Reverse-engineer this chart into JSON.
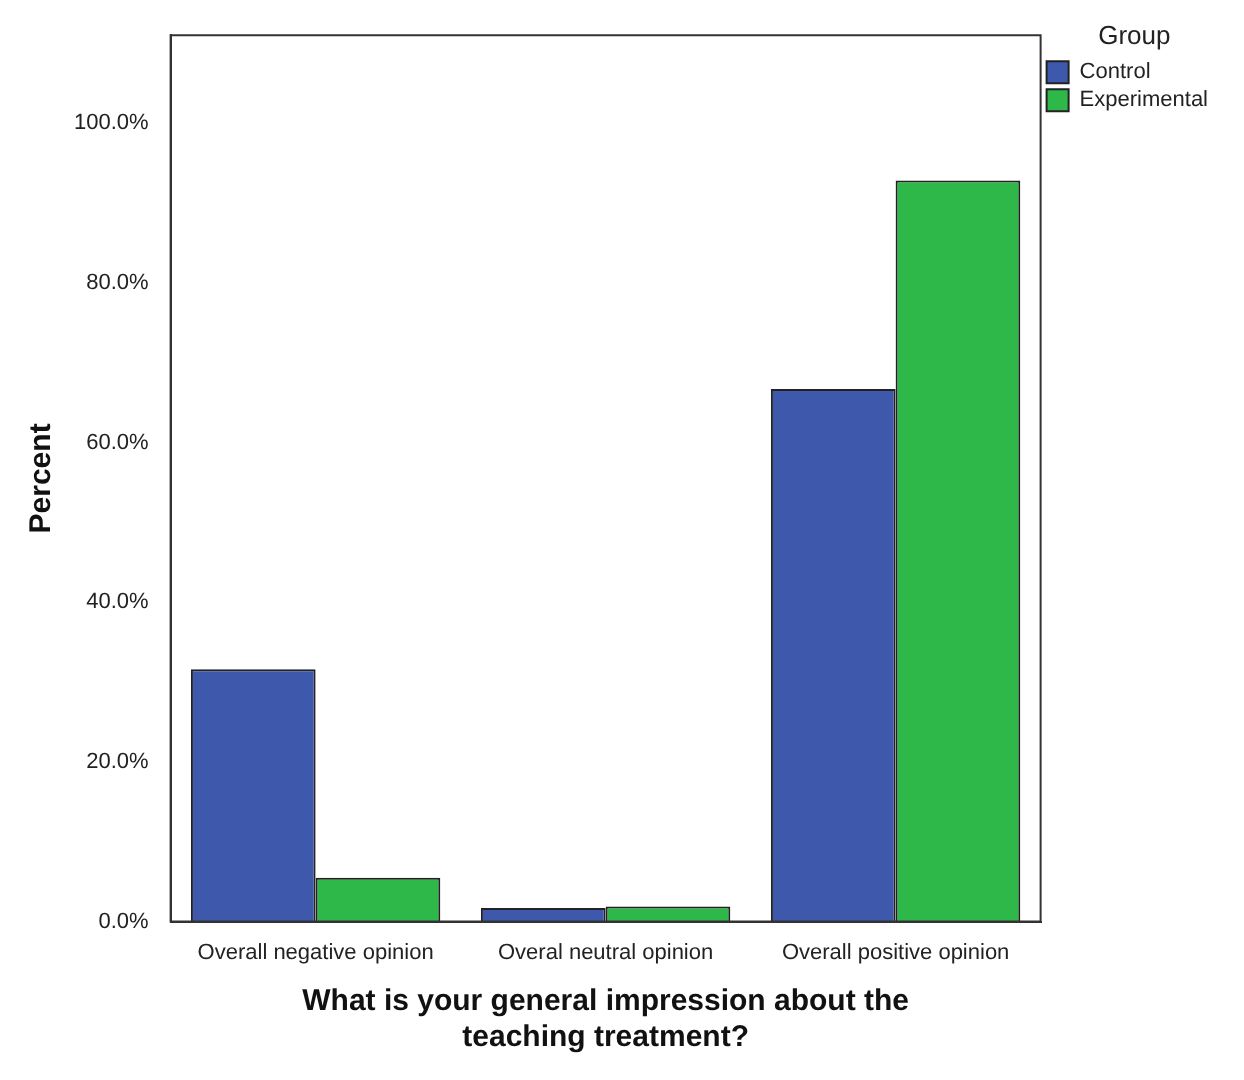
{
  "chart_data": {
    "type": "bar",
    "xlabel": "What is your general impression about the teaching treatment?",
    "ylabel": "Percent",
    "legend_title": "Group",
    "categories": [
      "Overall negative opinion",
      "Overal neutral opinion",
      "Overall positive opinion"
    ],
    "series": [
      {
        "name": "Control",
        "color": "#3e58ac",
        "values": [
          31.6,
          1.7,
          66.7
        ]
      },
      {
        "name": "Experimental",
        "color": "#2fb84a",
        "values": [
          5.5,
          1.9,
          92.8
        ]
      }
    ],
    "ylim": [
      0,
      111
    ],
    "yticks": [
      {
        "value": 0,
        "label": "0.0%"
      },
      {
        "value": 20,
        "label": "20.0%"
      },
      {
        "value": 40,
        "label": "40.0%"
      },
      {
        "value": 60,
        "label": "60.0%"
      },
      {
        "value": 80,
        "label": "80.0%"
      },
      {
        "value": 100,
        "label": "100.0%"
      }
    ],
    "grid": false,
    "legend": "top right"
  }
}
